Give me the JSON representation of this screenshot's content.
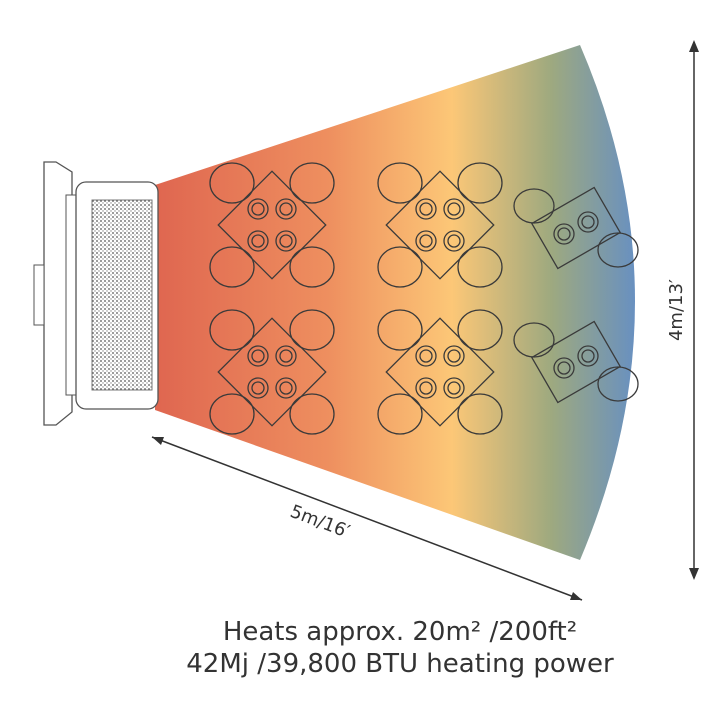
{
  "dimensions": {
    "width": "5m/16′",
    "depth": "4m/13′"
  },
  "caption": {
    "line1": "Heats approx. 20m² /200ft²",
    "line2": "42Mj /39,800 BTU heating power"
  }
}
